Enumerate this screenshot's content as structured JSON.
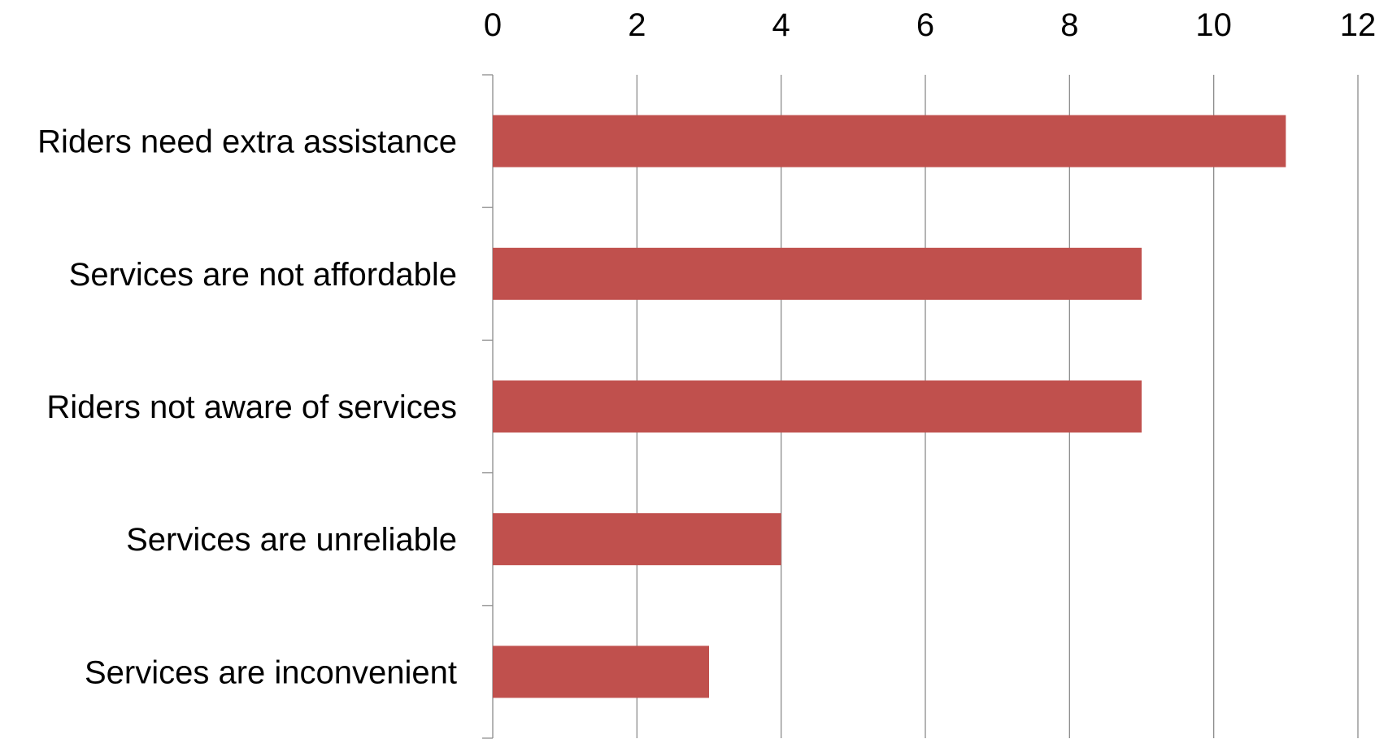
{
  "chart_data": {
    "type": "bar",
    "orientation": "horizontal",
    "categories": [
      "Riders need extra assistance",
      "Services are not affordable",
      "Riders not aware of services",
      "Services are unreliable",
      "Services are inconvenient"
    ],
    "values": [
      11,
      9,
      9,
      4,
      3
    ],
    "x_ticks": [
      "0",
      "2",
      "4",
      "6",
      "8",
      "10",
      "12"
    ],
    "xlim": [
      0,
      12
    ],
    "x_axis_position": "top",
    "grid": true,
    "legend": "none",
    "bar_color": "#c0504d"
  }
}
